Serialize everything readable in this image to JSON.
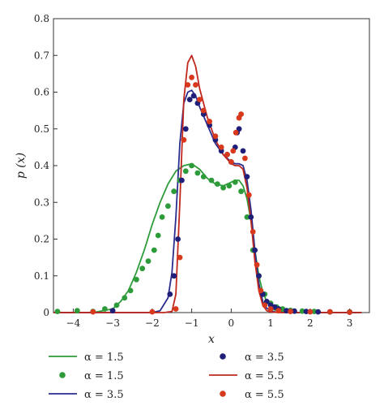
{
  "chart_data": {
    "type": "line",
    "xlabel": "x",
    "ylabel": "p (x)",
    "xlim": [
      -4.5,
      3.5
    ],
    "ylim": [
      0,
      0.8
    ],
    "xticks": [
      "−4",
      "−3",
      "−2",
      "−1",
      "0",
      "1",
      "2",
      "3"
    ],
    "yticks": [
      "0",
      "0.1",
      "0.2",
      "0.3",
      "0.4",
      "0.5",
      "0.6",
      "0.7",
      "0.8"
    ],
    "grid": false,
    "legend_position": "bottom",
    "series": [
      {
        "name": "α = 1.5",
        "kind": "line",
        "color": "#2e9b3a",
        "x": [
          -4.5,
          -3.5,
          -3.0,
          -2.8,
          -2.6,
          -2.4,
          -2.2,
          -2.0,
          -1.8,
          -1.6,
          -1.4,
          -1.2,
          -1.0,
          -0.8,
          -0.6,
          -0.4,
          -0.2,
          0.0,
          0.1,
          0.2,
          0.3,
          0.4,
          0.5,
          0.6,
          0.7,
          0.8,
          0.9,
          1.0,
          1.1,
          1.3,
          1.6,
          2.0,
          3.3
        ],
        "y": [
          0.0,
          0.0,
          0.01,
          0.03,
          0.06,
          0.11,
          0.17,
          0.24,
          0.3,
          0.35,
          0.385,
          0.4,
          0.405,
          0.39,
          0.365,
          0.35,
          0.345,
          0.355,
          0.36,
          0.36,
          0.345,
          0.31,
          0.25,
          0.17,
          0.1,
          0.055,
          0.03,
          0.015,
          0.007,
          0.002,
          0.0,
          0.0,
          0.0
        ]
      },
      {
        "name": "α = 1.5",
        "kind": "markers",
        "color": "#2e9b3a",
        "x": [
          -4.4,
          -3.9,
          -3.5,
          -3.2,
          -2.9,
          -2.7,
          -2.55,
          -2.4,
          -2.25,
          -2.1,
          -1.95,
          -1.85,
          -1.75,
          -1.6,
          -1.45,
          -1.3,
          -1.15,
          -1.0,
          -0.85,
          -0.7,
          -0.5,
          -0.35,
          -0.2,
          -0.05,
          0.1,
          0.25,
          0.4,
          0.55,
          0.7,
          0.85,
          1.0,
          1.15,
          1.3,
          1.5,
          1.8,
          2.1,
          2.5,
          3.0
        ],
        "y": [
          0.003,
          0.005,
          0.003,
          0.01,
          0.02,
          0.04,
          0.06,
          0.09,
          0.12,
          0.14,
          0.17,
          0.21,
          0.26,
          0.29,
          0.33,
          0.36,
          0.385,
          0.4,
          0.38,
          0.37,
          0.36,
          0.35,
          0.34,
          0.345,
          0.355,
          0.33,
          0.26,
          0.17,
          0.1,
          0.05,
          0.025,
          0.015,
          0.01,
          0.006,
          0.004,
          0.003,
          0.002,
          0.002
        ]
      },
      {
        "name": "α = 3.5",
        "kind": "line",
        "color": "#2b2d8e",
        "x": [
          -4.5,
          -2.0,
          -1.8,
          -1.6,
          -1.5,
          -1.4,
          -1.3,
          -1.2,
          -1.1,
          -1.0,
          -0.9,
          -0.8,
          -0.6,
          -0.4,
          -0.2,
          0.0,
          0.1,
          0.2,
          0.3,
          0.4,
          0.5,
          0.6,
          0.7,
          0.8,
          0.9,
          1.0,
          1.1,
          1.3,
          1.6,
          3.3
        ],
        "y": [
          0.0,
          0.0,
          0.005,
          0.04,
          0.11,
          0.26,
          0.46,
          0.57,
          0.6,
          0.605,
          0.59,
          0.56,
          0.51,
          0.46,
          0.43,
          0.41,
          0.405,
          0.405,
          0.4,
          0.36,
          0.28,
          0.17,
          0.08,
          0.03,
          0.012,
          0.005,
          0.002,
          0.0,
          0.0,
          0.0
        ]
      },
      {
        "name": "α = 3.5",
        "kind": "markers",
        "color": "#1f1f7a",
        "x": [
          -3.0,
          -1.55,
          -1.45,
          -1.35,
          -1.25,
          -1.15,
          -1.05,
          -0.95,
          -0.85,
          -0.7,
          -0.55,
          -0.4,
          -0.25,
          -0.1,
          0.0,
          0.1,
          0.15,
          0.2,
          0.3,
          0.4,
          0.5,
          0.6,
          0.7,
          0.8,
          0.9,
          1.0,
          1.1,
          1.2,
          1.4,
          1.6,
          1.9,
          2.2,
          2.5,
          3.0
        ],
        "y": [
          0.005,
          0.05,
          0.1,
          0.2,
          0.36,
          0.5,
          0.58,
          0.59,
          0.57,
          0.54,
          0.51,
          0.47,
          0.44,
          0.43,
          0.41,
          0.45,
          0.49,
          0.5,
          0.44,
          0.37,
          0.26,
          0.17,
          0.1,
          0.05,
          0.03,
          0.02,
          0.015,
          0.01,
          0.005,
          0.004,
          0.003,
          0.002,
          0.002,
          0.001
        ]
      },
      {
        "name": "α = 5.5",
        "kind": "line",
        "color": "#c0281d",
        "x": [
          -4.5,
          -1.7,
          -1.5,
          -1.4,
          -1.3,
          -1.2,
          -1.1,
          -1.0,
          -0.9,
          -0.8,
          -0.6,
          -0.4,
          -0.2,
          0.0,
          0.1,
          0.2,
          0.3,
          0.4,
          0.5,
          0.6,
          0.7,
          0.8,
          0.9,
          1.0,
          1.2,
          3.3
        ],
        "y": [
          0.0,
          0.0,
          0.003,
          0.05,
          0.3,
          0.58,
          0.68,
          0.7,
          0.67,
          0.61,
          0.53,
          0.47,
          0.43,
          0.405,
          0.4,
          0.4,
          0.39,
          0.34,
          0.25,
          0.14,
          0.06,
          0.02,
          0.005,
          0.002,
          0.0,
          0.0
        ]
      },
      {
        "name": "α = 5.5",
        "kind": "markers",
        "color": "#d8381c",
        "x": [
          -3.5,
          -2.0,
          -1.4,
          -1.3,
          -1.2,
          -1.1,
          -1.0,
          -0.9,
          -0.8,
          -0.7,
          -0.55,
          -0.4,
          -0.25,
          -0.1,
          0.0,
          0.05,
          0.12,
          0.2,
          0.25,
          0.35,
          0.45,
          0.55,
          0.65,
          0.75,
          0.85,
          1.0,
          1.2,
          1.5,
          2.0,
          2.5,
          3.0
        ],
        "y": [
          0.002,
          0.002,
          0.01,
          0.15,
          0.47,
          0.62,
          0.64,
          0.62,
          0.58,
          0.55,
          0.52,
          0.48,
          0.45,
          0.43,
          0.41,
          0.44,
          0.49,
          0.53,
          0.54,
          0.42,
          0.32,
          0.22,
          0.13,
          0.06,
          0.02,
          0.01,
          0.005,
          0.003,
          0.002,
          0.002,
          0.001
        ]
      }
    ]
  },
  "legend": [
    {
      "label": "α = 1.5",
      "kind": "line",
      "color": "#2e9b3a"
    },
    {
      "label": "α = 3.5",
      "kind": "markers",
      "color": "#1f1f7a"
    },
    {
      "label": "α = 1.5",
      "kind": "markers",
      "color": "#2e9b3a"
    },
    {
      "label": "α = 5.5",
      "kind": "line",
      "color": "#c0281d"
    },
    {
      "label": "α = 3.5",
      "kind": "line",
      "color": "#2b2d8e"
    },
    {
      "label": "α = 5.5",
      "kind": "markers",
      "color": "#d8381c"
    }
  ]
}
